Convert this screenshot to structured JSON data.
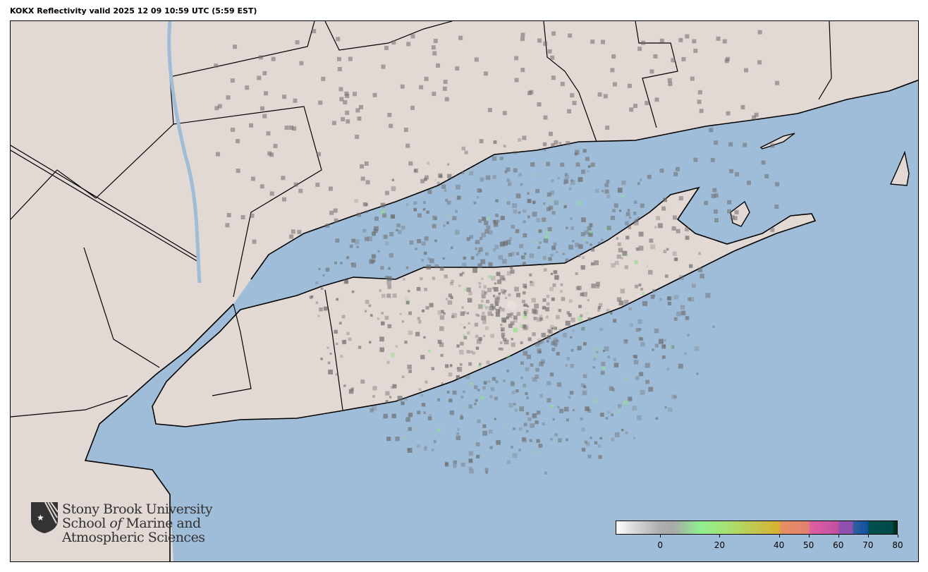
{
  "title": "KOKX Reflectivity valid 2025 12 09 10:59 UTC (5:59 EST)",
  "colors": {
    "land": "#e2d8d4",
    "water": "#9fbcd8",
    "radar_gray": "#6e6e6e"
  },
  "logo": {
    "line1": "Stony Brook University",
    "line2_a": "School ",
    "line2_b": "of",
    "line2_c": " Marine and",
    "line3": "Atmospheric Sciences",
    "icon": "sbu-shield-star-icon"
  },
  "colorbar": {
    "units_min": -15,
    "units_max": 80,
    "ticks": [
      "0",
      "20",
      "40",
      "50",
      "60",
      "70",
      "80"
    ],
    "tick_values": [
      0,
      20,
      40,
      50,
      60,
      70,
      80
    ]
  }
}
